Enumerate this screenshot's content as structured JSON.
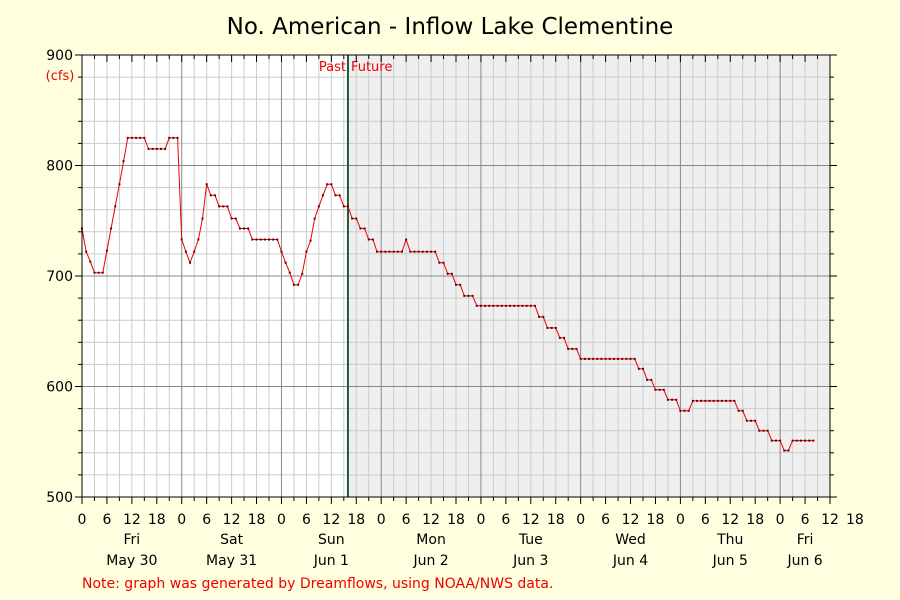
{
  "chart_data": {
    "type": "line",
    "title": "No. American - Inflow Lake Clementine",
    "ylabel": "(cfs)",
    "ylim": [
      500,
      900
    ],
    "yticks": [
      "500",
      "600",
      "700",
      "800",
      "900"
    ],
    "xlim_hours": [
      0,
      180
    ],
    "grid": true,
    "past_label": "Past",
    "future_label": "Future",
    "now_hour": 64,
    "hour_tick_labels": [
      "0",
      "6",
      "12",
      "18",
      "0",
      "6",
      "12",
      "18",
      "0",
      "6",
      "12",
      "18",
      "0",
      "6",
      "12",
      "18",
      "0",
      "6",
      "12",
      "18",
      "0",
      "6",
      "12",
      "18",
      "0",
      "6",
      "12",
      "18",
      "0",
      "6",
      "12",
      "18"
    ],
    "days": [
      {
        "weekday": "Fri",
        "date": "May 30"
      },
      {
        "weekday": "Sat",
        "date": "May 31"
      },
      {
        "weekday": "Sun",
        "date": "Jun 1"
      },
      {
        "weekday": "Mon",
        "date": "Jun 2"
      },
      {
        "weekday": "Tue",
        "date": "Jun 3"
      },
      {
        "weekday": "Wed",
        "date": "Jun 4"
      },
      {
        "weekday": "Thu",
        "date": "Jun 5"
      },
      {
        "weekday": "Fri",
        "date": "Jun 6"
      }
    ],
    "series": [
      {
        "color": "#ee0000",
        "points": [
          [
            0,
            743
          ],
          [
            1,
            722
          ],
          [
            2,
            713
          ],
          [
            3,
            703
          ],
          [
            4,
            703
          ],
          [
            5,
            703
          ],
          [
            6,
            723
          ],
          [
            7,
            743
          ],
          [
            8,
            763
          ],
          [
            9,
            783
          ],
          [
            10,
            804
          ],
          [
            11,
            825
          ],
          [
            12,
            825
          ],
          [
            13,
            825
          ],
          [
            14,
            825
          ],
          [
            15,
            825
          ],
          [
            16,
            815
          ],
          [
            17,
            815
          ],
          [
            18,
            815
          ],
          [
            19,
            815
          ],
          [
            20,
            815
          ],
          [
            21,
            825
          ],
          [
            22,
            825
          ],
          [
            23,
            825
          ],
          [
            24,
            733
          ],
          [
            25,
            722
          ],
          [
            26,
            712
          ],
          [
            27,
            722
          ],
          [
            28,
            733
          ],
          [
            29,
            752
          ],
          [
            30,
            783
          ],
          [
            31,
            773
          ],
          [
            32,
            773
          ],
          [
            33,
            763
          ],
          [
            34,
            763
          ],
          [
            35,
            763
          ],
          [
            36,
            752
          ],
          [
            37,
            752
          ],
          [
            38,
            743
          ],
          [
            39,
            743
          ],
          [
            40,
            743
          ],
          [
            41,
            733
          ],
          [
            42,
            733
          ],
          [
            43,
            733
          ],
          [
            44,
            733
          ],
          [
            45,
            733
          ],
          [
            46,
            733
          ],
          [
            47,
            733
          ],
          [
            48,
            722
          ],
          [
            49,
            712
          ],
          [
            50,
            703
          ],
          [
            51,
            692
          ],
          [
            52,
            692
          ],
          [
            53,
            702
          ],
          [
            54,
            722
          ],
          [
            55,
            732
          ],
          [
            56,
            752
          ],
          [
            57,
            763
          ],
          [
            58,
            773
          ],
          [
            59,
            783
          ],
          [
            60,
            783
          ],
          [
            61,
            773
          ],
          [
            62,
            773
          ],
          [
            63,
            763
          ],
          [
            64,
            763
          ],
          [
            65,
            752
          ],
          [
            66,
            752
          ],
          [
            67,
            743
          ],
          [
            68,
            743
          ],
          [
            69,
            733
          ],
          [
            70,
            733
          ],
          [
            71,
            722
          ],
          [
            72,
            722
          ],
          [
            73,
            722
          ],
          [
            74,
            722
          ],
          [
            75,
            722
          ],
          [
            76,
            722
          ],
          [
            77,
            722
          ],
          [
            78,
            733
          ],
          [
            79,
            722
          ],
          [
            80,
            722
          ],
          [
            81,
            722
          ],
          [
            82,
            722
          ],
          [
            83,
            722
          ],
          [
            84,
            722
          ],
          [
            85,
            722
          ],
          [
            86,
            712
          ],
          [
            87,
            712
          ],
          [
            88,
            702
          ],
          [
            89,
            702
          ],
          [
            90,
            692
          ],
          [
            91,
            692
          ],
          [
            92,
            682
          ],
          [
            93,
            682
          ],
          [
            94,
            682
          ],
          [
            95,
            673
          ],
          [
            96,
            673
          ],
          [
            97,
            673
          ],
          [
            98,
            673
          ],
          [
            99,
            673
          ],
          [
            100,
            673
          ],
          [
            101,
            673
          ],
          [
            102,
            673
          ],
          [
            103,
            673
          ],
          [
            104,
            673
          ],
          [
            105,
            673
          ],
          [
            106,
            673
          ],
          [
            107,
            673
          ],
          [
            108,
            673
          ],
          [
            109,
            673
          ],
          [
            110,
            663
          ],
          [
            111,
            663
          ],
          [
            112,
            653
          ],
          [
            113,
            653
          ],
          [
            114,
            653
          ],
          [
            115,
            644
          ],
          [
            116,
            644
          ],
          [
            117,
            634
          ],
          [
            118,
            634
          ],
          [
            119,
            634
          ],
          [
            120,
            625
          ],
          [
            121,
            625
          ],
          [
            122,
            625
          ],
          [
            123,
            625
          ],
          [
            124,
            625
          ],
          [
            125,
            625
          ],
          [
            126,
            625
          ],
          [
            127,
            625
          ],
          [
            128,
            625
          ],
          [
            129,
            625
          ],
          [
            130,
            625
          ],
          [
            131,
            625
          ],
          [
            132,
            625
          ],
          [
            133,
            625
          ],
          [
            134,
            616
          ],
          [
            135,
            616
          ],
          [
            136,
            606
          ],
          [
            137,
            606
          ],
          [
            138,
            597
          ],
          [
            139,
            597
          ],
          [
            140,
            597
          ],
          [
            141,
            588
          ],
          [
            142,
            588
          ],
          [
            143,
            588
          ],
          [
            144,
            578
          ],
          [
            145,
            578
          ],
          [
            146,
            578
          ],
          [
            147,
            587
          ],
          [
            148,
            587
          ],
          [
            149,
            587
          ],
          [
            150,
            587
          ],
          [
            151,
            587
          ],
          [
            152,
            587
          ],
          [
            153,
            587
          ],
          [
            154,
            587
          ],
          [
            155,
            587
          ],
          [
            156,
            587
          ],
          [
            157,
            587
          ],
          [
            158,
            578
          ],
          [
            159,
            578
          ],
          [
            160,
            569
          ],
          [
            161,
            569
          ],
          [
            162,
            569
          ],
          [
            163,
            560
          ],
          [
            164,
            560
          ],
          [
            165,
            560
          ],
          [
            166,
            551
          ],
          [
            167,
            551
          ],
          [
            168,
            551
          ],
          [
            169,
            542
          ],
          [
            170,
            542
          ],
          [
            171,
            551
          ],
          [
            172,
            551
          ],
          [
            173,
            551
          ],
          [
            174,
            551
          ],
          [
            175,
            551
          ],
          [
            176,
            551
          ]
        ]
      }
    ],
    "note": "Note: graph was generated by Dreamflows, using NOAA/NWS data."
  }
}
